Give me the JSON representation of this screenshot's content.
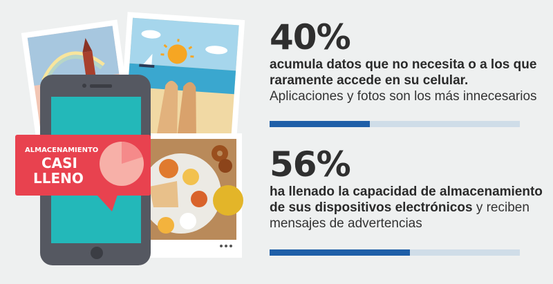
{
  "illustration": {
    "alert_line1": "ALMACENAMIENTO",
    "alert_line2": "CASI",
    "alert_line3": "LLENO",
    "storage_used_fraction": 0.8
  },
  "stats": [
    {
      "percent": "40%",
      "bold_text": "acumula datos que no necesita o a los que raramente accede en su celular.",
      "regular_text": "Aplicaciones y fotos son los más innecesarios",
      "bar_fraction": 0.4
    },
    {
      "percent": "56%",
      "bold_text": "ha llenado la capacidad de almacenamiento de sus dispositivos electrónicos",
      "regular_text": " y reciben mensajes de advertencias",
      "bar_fraction": 0.56
    }
  ],
  "colors": {
    "bar_fill": "#1f5fa8",
    "bar_track": "#cfdde8",
    "alert_red": "#e8424f",
    "phone_teal": "#23b8b9"
  }
}
